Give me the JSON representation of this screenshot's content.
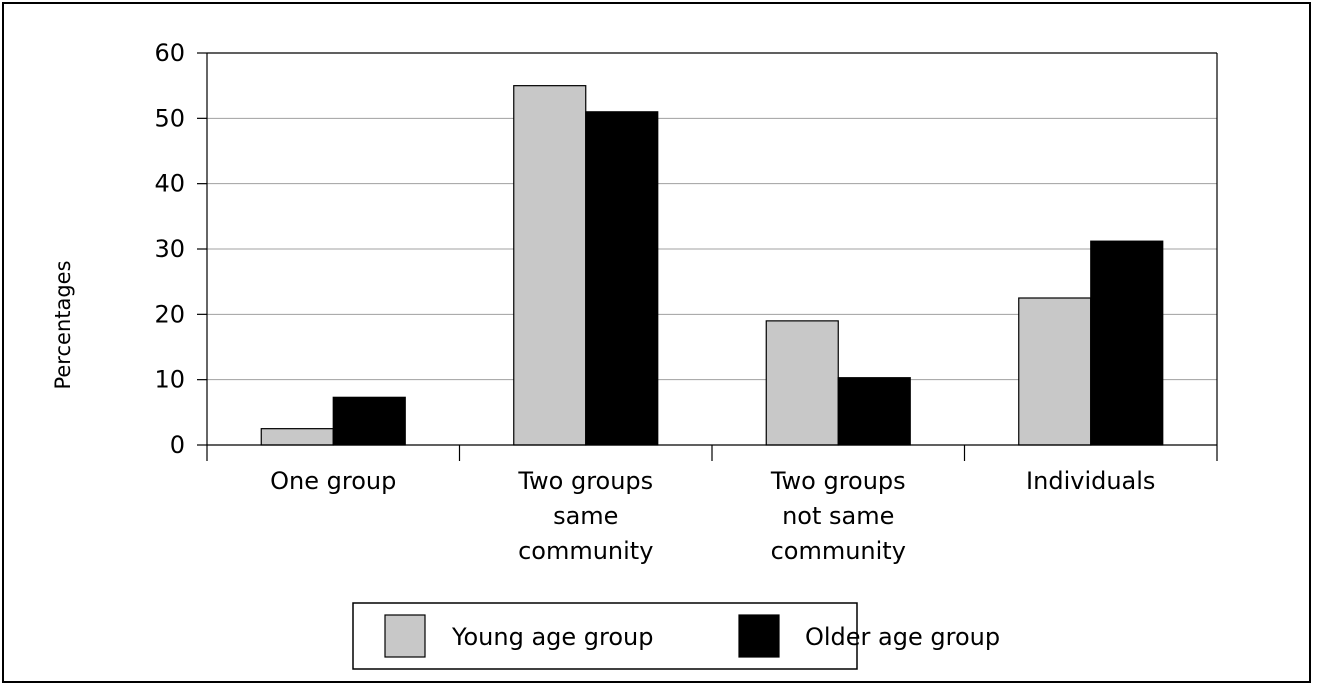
{
  "chart_data": {
    "type": "bar",
    "title": "",
    "xlabel": "",
    "ylabel": "Percentages",
    "ylim": [
      0,
      60
    ],
    "yticks": [
      0,
      10,
      20,
      30,
      40,
      50,
      60
    ],
    "grid": true,
    "legend_position": "bottom",
    "categories": [
      [
        "One group"
      ],
      [
        "Two groups",
        "same",
        "community"
      ],
      [
        "Two groups",
        "not same",
        "community"
      ],
      [
        "Individuals"
      ]
    ],
    "series": [
      {
        "name": "Young age group",
        "color": "#c8c8c8",
        "values": [
          2.5,
          55,
          19,
          22.5
        ]
      },
      {
        "name": "Older age group",
        "color": "#000000",
        "values": [
          7.3,
          51,
          10.3,
          31.2
        ]
      }
    ]
  }
}
